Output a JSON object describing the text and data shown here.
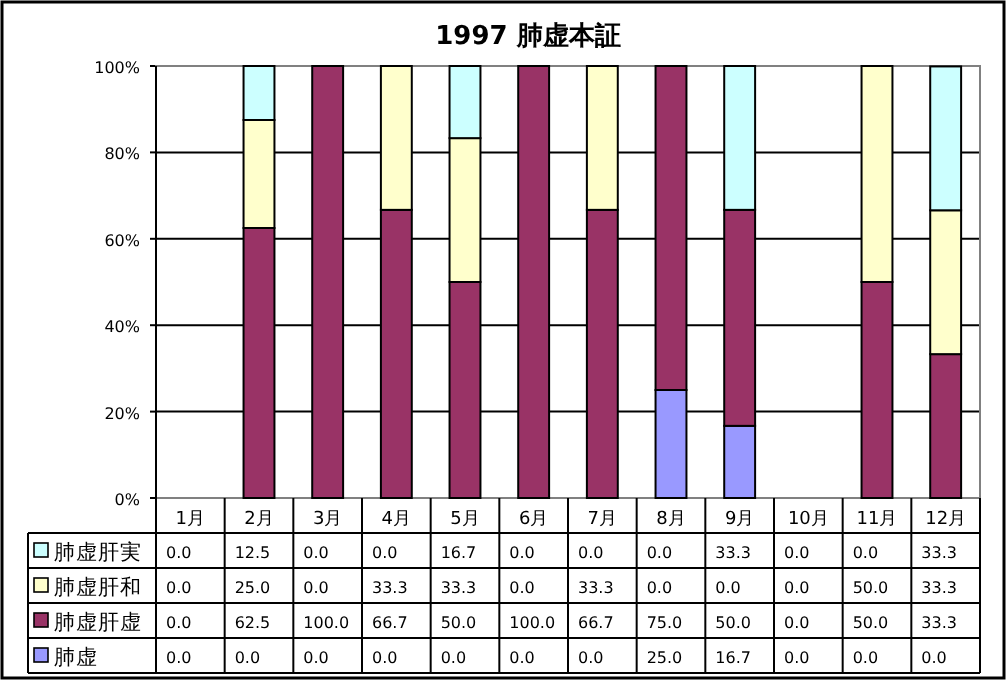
{
  "chart_data": {
    "type": "bar",
    "stacked": true,
    "title": "1997 肺虚本証",
    "categories": [
      "1月",
      "2月",
      "3月",
      "4月",
      "5月",
      "6月",
      "7月",
      "8月",
      "9月",
      "10月",
      "11月",
      "12月"
    ],
    "ylim": [
      0,
      100
    ],
    "yticks": [
      {
        "value": 0,
        "label": "0%"
      },
      {
        "value": 20,
        "label": "20%"
      },
      {
        "value": 40,
        "label": "40%"
      },
      {
        "value": 60,
        "label": "60%"
      },
      {
        "value": 80,
        "label": "80%"
      },
      {
        "value": 100,
        "label": "100%"
      }
    ],
    "grid": "y",
    "legend": "bottom",
    "series": [
      {
        "name": "肺虚",
        "color": "#9999ff",
        "values": [
          0,
          0,
          0,
          0,
          0,
          0,
          0,
          25,
          16.7,
          0,
          0,
          0
        ],
        "value_labels": [
          "0.0",
          "0.0",
          "0.0",
          "0.0",
          "0.0",
          "0.0",
          "0.0",
          "25.0",
          "16.7",
          "0.0",
          "0.0",
          "0.0"
        ]
      },
      {
        "name": "肺虚肝虚",
        "color": "#993366",
        "values": [
          0,
          62.5,
          100,
          66.7,
          50,
          100,
          66.7,
          75,
          50,
          0,
          50,
          33.3
        ],
        "value_labels": [
          "0.0",
          "62.5",
          "100.0",
          "66.7",
          "50.0",
          "100.0",
          "66.7",
          "75.0",
          "50.0",
          "0.0",
          "50.0",
          "33.3"
        ]
      },
      {
        "name": "肺虚肝和",
        "color": "#ffffcc",
        "values": [
          0,
          25,
          0,
          33.3,
          33.3,
          0,
          33.3,
          0,
          0,
          0,
          50,
          33.3
        ],
        "value_labels": [
          "0.0",
          "25.0",
          "0.0",
          "33.3",
          "33.3",
          "0.0",
          "33.3",
          "0.0",
          "0.0",
          "0.0",
          "50.0",
          "33.3"
        ]
      },
      {
        "name": "肺虚肝実",
        "color": "#ccffff",
        "values": [
          0,
          12.5,
          0,
          0,
          16.7,
          0,
          0,
          0,
          33.3,
          0,
          0,
          33.3
        ],
        "value_labels": [
          "0.0",
          "12.5",
          "0.0",
          "0.0",
          "16.7",
          "0.0",
          "0.0",
          "0.0",
          "33.3",
          "0.0",
          "0.0",
          "33.3"
        ]
      }
    ]
  }
}
